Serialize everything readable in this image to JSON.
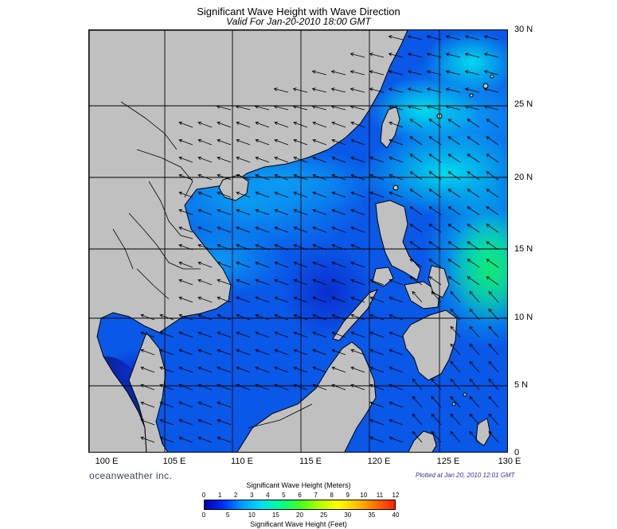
{
  "title": "Significant Wave Height with Wave Direction",
  "subtitle": "Valid For Jan-20-2010 18:00 GMT",
  "lat_labels": [
    "30 N",
    "25 N",
    "20 N",
    "15 N",
    "10 N",
    "5 N",
    "0"
  ],
  "lon_labels": [
    "100 E",
    "105 E",
    "110 E",
    "115 E",
    "120 E",
    "125 E",
    "130 E"
  ],
  "brand": "oceanweather inc.",
  "plotted": "Plotted at Jan 20, 2010 12:01 GMT",
  "colorbar": {
    "title_meters": "Significant Wave Height (Meters)",
    "title_feet": "Significant Wave Height (Feet)",
    "meters_ticks": [
      "0",
      "1",
      "2",
      "3",
      "4",
      "5",
      "6",
      "7",
      "8",
      "9",
      "10",
      "11",
      "12"
    ],
    "feet_ticks": [
      "0",
      "5",
      "10",
      "15",
      "20",
      "25",
      "30",
      "35",
      "40"
    ],
    "stops": [
      "#0000a8",
      "#0030ff",
      "#00a0ff",
      "#00e0f0",
      "#00ff90",
      "#40ff20",
      "#b0ff00",
      "#ffff00",
      "#ffc000",
      "#ff7000",
      "#ff2000"
    ]
  },
  "colors": {
    "land": "#c0c0c0",
    "sea_deep": "#0a52e6",
    "sea_mid": "#0a8ef0",
    "sea_high": "#00d8e8",
    "sea_peak": "#10e880",
    "grid": "#000000",
    "arrow": "#000000"
  }
}
